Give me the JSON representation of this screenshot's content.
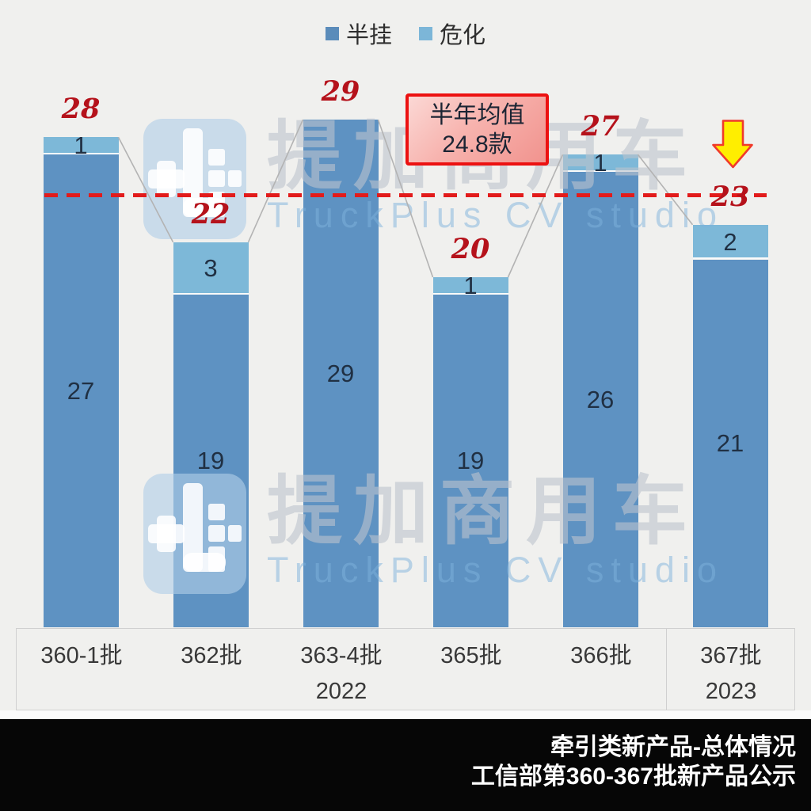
{
  "legend": {
    "items": [
      {
        "label": "半挂",
        "color": "#5b8cba"
      },
      {
        "label": "危化",
        "color": "#7cb6d8"
      }
    ]
  },
  "chart_data": {
    "type": "bar",
    "subtype": "stacked-column",
    "categories": [
      "360-1批",
      "362批",
      "363-4批",
      "365批",
      "366批",
      "367批"
    ],
    "group_labels": [
      {
        "label": "2022",
        "from": 0,
        "to": 4
      },
      {
        "label": "2023",
        "from": 5,
        "to": 5
      }
    ],
    "series": [
      {
        "name": "半挂",
        "color": "#5e92c2",
        "values": [
          27,
          19,
          29,
          19,
          26,
          21
        ]
      },
      {
        "name": "危化",
        "color": "#7db8d8",
        "values": [
          1,
          3,
          0,
          1,
          1,
          2
        ]
      }
    ],
    "totals": [
      28,
      22,
      29,
      20,
      27,
      23
    ],
    "mean_line": {
      "value": 24.8,
      "color": "#e21b1b",
      "style": "dashed"
    },
    "ylim": [
      0,
      29
    ],
    "grid": false,
    "legend_position": "top",
    "connector_lines": true,
    "total_label_color": "#b5121b",
    "segment_label_color": "#203043"
  },
  "annotation": {
    "line1": "半年均值",
    "line2": "24.8款",
    "border_color": "#ec1111",
    "arrow": "down",
    "arrow_fill": "#ffee00",
    "arrow_stroke": "#f03a2a"
  },
  "watermark": {
    "cn": "提加商用车",
    "en": "TruckPlus CV studio"
  },
  "footer": {
    "line1": "牵引类新产品-总体情况",
    "line2": "工信部第360-367批新产品公示"
  }
}
